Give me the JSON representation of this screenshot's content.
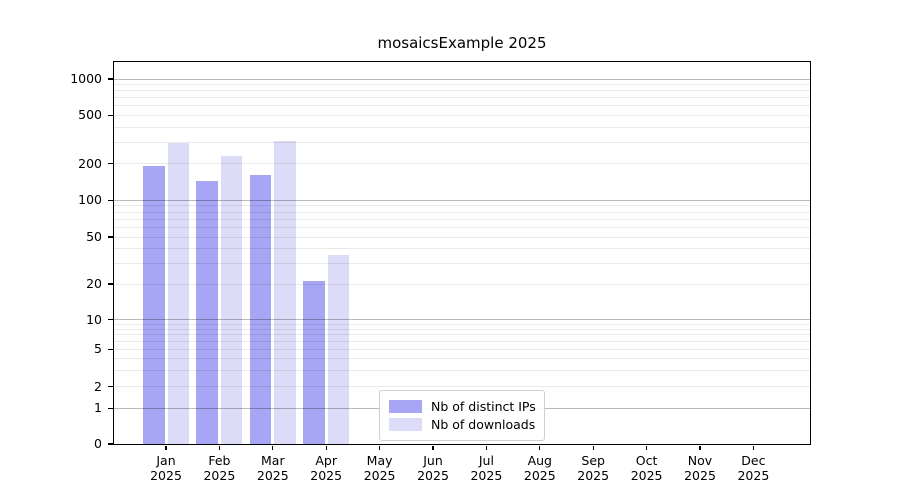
{
  "title": "mosaicsExample 2025",
  "legend": {
    "items": [
      {
        "label": "Nb of distinct IPs",
        "color": "#a6a6f4"
      },
      {
        "label": "Nb of downloads",
        "color": "#dcdcf8"
      }
    ]
  },
  "chart_data": {
    "type": "bar",
    "title": "mosaicsExample 2025",
    "categories": [
      "Jan",
      "Feb",
      "Mar",
      "Apr",
      "May",
      "Jun",
      "Jul",
      "Aug",
      "Sep",
      "Oct",
      "Nov",
      "Dec"
    ],
    "category_year": "2025",
    "series": [
      {
        "name": "Nb of distinct IPs",
        "color": "#a6a6f4",
        "values": [
          193,
          145,
          160,
          21,
          0,
          0,
          0,
          0,
          0,
          0,
          0,
          0
        ]
      },
      {
        "name": "Nb of downloads",
        "color": "#dcdcf8",
        "values": [
          295,
          230,
          310,
          35,
          0,
          0,
          0,
          0,
          0,
          0,
          0,
          0
        ]
      }
    ],
    "xlabel": "",
    "ylabel": "",
    "yticks": [
      0,
      1,
      2,
      5,
      10,
      20,
      50,
      100,
      200,
      500,
      1000
    ],
    "yscale": "symlog",
    "ylim": [
      0,
      1400
    ],
    "grid": "horizontal major and minor",
    "legend_position": "bottom-center inside plot"
  }
}
